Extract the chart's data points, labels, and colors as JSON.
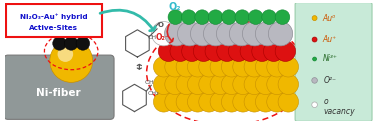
{
  "fig_bg": "#ffffff",
  "legend_bg": "#c8ead8",
  "legend_edge": "#99ccaa",
  "ni_fiber_color": "#909898",
  "ni_fiber_edge": "#787878",
  "ni_fiber_text": "Ni-fiber",
  "ni_fiber_text_color": "#ffffff",
  "label_box_text_line1": "Ni₂O₃-Au⁺ hybrid",
  "label_box_text_line2": "Active-Sites",
  "label_box_edge": "#ee1111",
  "label_box_face": "#ffffff",
  "label_text_color": "#1111cc",
  "dashed_ellipse_color": "#ee1111",
  "layer_gold_color": "#f0b800",
  "layer_gold_edge": "#c89000",
  "layer_red_color": "#dd1111",
  "layer_red_edge": "#aa0000",
  "layer_gray_color": "#b8b8c0",
  "layer_gray_edge": "#909098",
  "layer_green_color": "#22aa44",
  "layer_green_edge": "#118833",
  "vacancy_color": "#ffffff",
  "vacancy_edge": "#aaaaaa",
  "arrow_teal_color": "#33bbaa",
  "arrow_red_color": "#dd2222",
  "o2_color": "#33bbcc",
  "o2_minus_color": "#dd2222",
  "molecule_color": "#555555",
  "legend_items": [
    {
      "label": "Au⁰",
      "color": "#f0b800",
      "edge": "#c89000",
      "r": 0.042
    },
    {
      "label": "Au⁺",
      "color": "#dd1111",
      "edge": "#aa0000",
      "r": 0.042
    },
    {
      "label": "Ni³⁺",
      "color": "#22aa44",
      "edge": "#118833",
      "r": 0.033
    },
    {
      "label": "O²⁻",
      "color": "#b8b8c0",
      "edge": "#909098",
      "r": 0.048
    },
    {
      "label": "o\nvacancy",
      "color": "#ffffff",
      "edge": "#aaaaaa",
      "r": 0.048
    }
  ]
}
